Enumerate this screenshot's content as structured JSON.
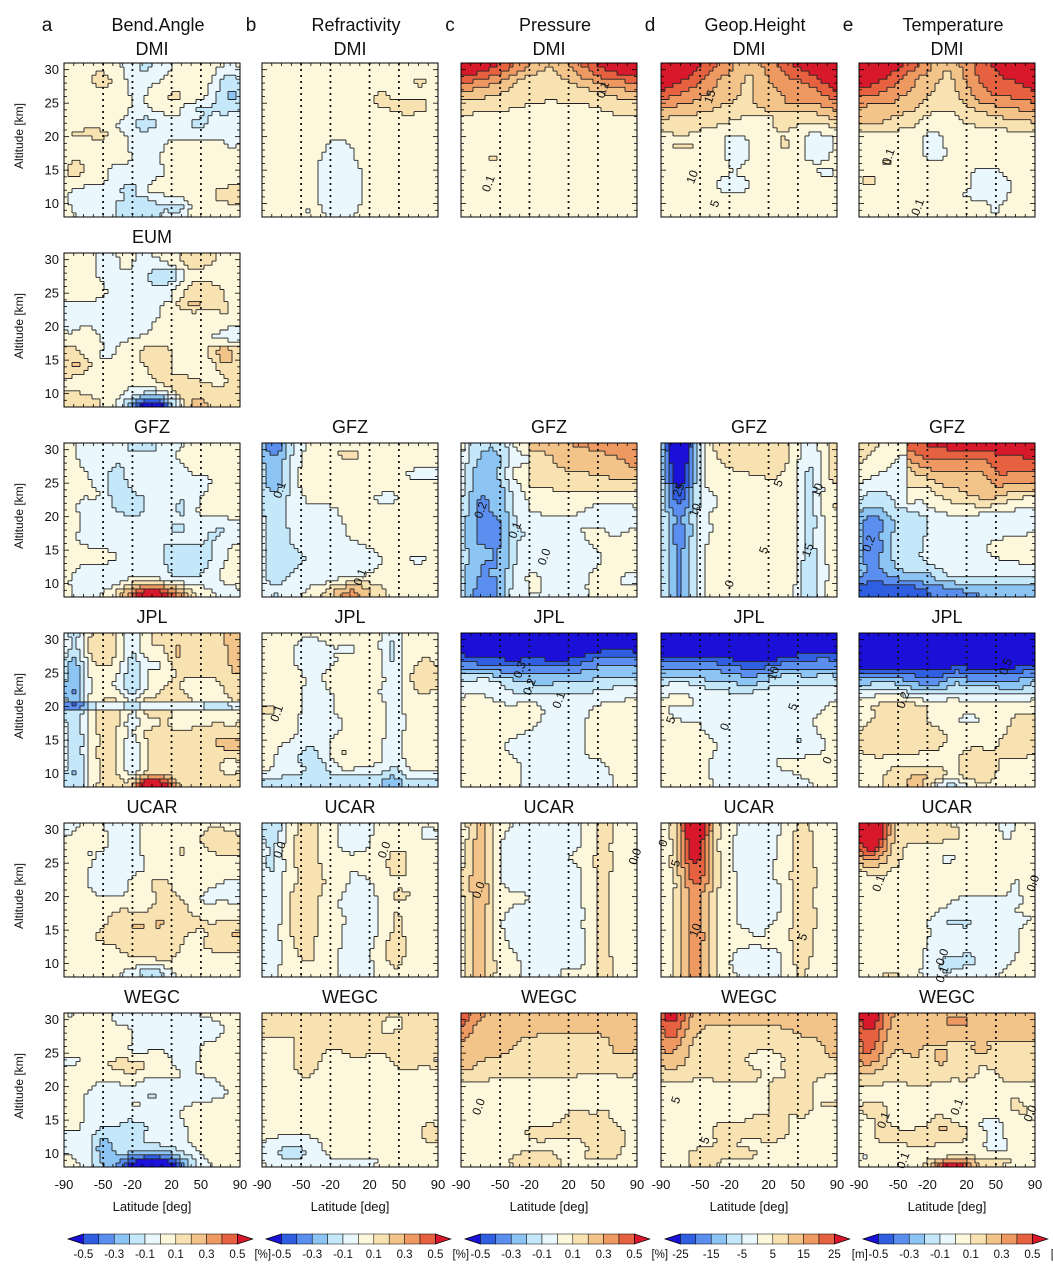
{
  "chart_data": {
    "type": "heatmap",
    "description_labels": {
      "column_letters": [
        "a",
        "b",
        "c",
        "d",
        "e"
      ],
      "variables": [
        "Bend.Angle",
        "Refractivity",
        "Pressure",
        "Geop.Height",
        "Temperature"
      ],
      "centers": [
        "DMI",
        "EUM",
        "GFZ",
        "JPL",
        "UCAR",
        "WEGC"
      ]
    },
    "ylabel": "Altitude [km]",
    "xlabel": "Latitude [deg]",
    "xlim": [
      -90,
      90
    ],
    "ylim": [
      8,
      31
    ],
    "x_ticks": [
      "-90",
      "-50",
      "-20",
      "20",
      "50",
      "90"
    ],
    "y_ticks": [
      "10",
      "15",
      "20",
      "25",
      "30"
    ],
    "colorbars": [
      {
        "ticks": [
          "-0.5",
          "-0.3",
          "-0.1",
          "0.1",
          "0.3",
          "0.5"
        ],
        "unit": "[%]"
      },
      {
        "ticks": [
          "-0.5",
          "-0.3",
          "-0.1",
          "0.1",
          "0.3",
          "0.5"
        ],
        "unit": "[%]"
      },
      {
        "ticks": [
          "-0.5",
          "-0.3",
          "-0.1",
          "0.1",
          "0.3",
          "0.5"
        ],
        "unit": "[%]"
      },
      {
        "ticks": [
          "-25",
          "-15",
          "-5",
          "5",
          "15",
          "25"
        ],
        "unit": "[m]"
      },
      {
        "ticks": [
          "-0.5",
          "-0.3",
          "-0.1",
          "0.1",
          "0.3",
          "0.5"
        ],
        "unit": "[K]"
      }
    ],
    "colors": {
      "scale": [
        "#1a10d8",
        "#2f5fe0",
        "#5a8ff0",
        "#8cc4f4",
        "#c4e8fa",
        "#eaf7fc",
        "#fdf8dc",
        "#f8e2b2",
        "#f3c489",
        "#ee9962",
        "#e6613f",
        "#d7192b"
      ],
      "dark_blue": "#1a10d8",
      "dark_red": "#c0101e"
    },
    "panels": [
      {
        "row": 0,
        "col": 0,
        "center": "DMI",
        "pattern": "noisy_neutral",
        "labels": []
      },
      {
        "row": 0,
        "col": 1,
        "center": "DMI",
        "pattern": "slight_positive",
        "labels": []
      },
      {
        "row": 0,
        "col": 2,
        "center": "DMI",
        "pattern": "upper_polar_warm",
        "labels": [
          {
            "text": "0.1",
            "x": 55,
            "y": 27
          },
          {
            "text": "0.1",
            "x": -62,
            "y": 13
          }
        ]
      },
      {
        "row": 0,
        "col": 3,
        "center": "DMI",
        "pattern": "upper_polar_warm_strong",
        "labels": [
          {
            "text": "15",
            "x": -40,
            "y": 26
          },
          {
            "text": "10",
            "x": -58,
            "y": 14
          },
          {
            "text": "5",
            "x": -35,
            "y": 10
          }
        ]
      },
      {
        "row": 0,
        "col": 4,
        "center": "DMI",
        "pattern": "upper_polar_warm_strong",
        "labels": [
          {
            "text": "0.1",
            "x": -60,
            "y": 17
          },
          {
            "text": "0.1",
            "x": -30,
            "y": 9.5
          }
        ]
      },
      {
        "row": 1,
        "col": 0,
        "center": "EUM",
        "pattern": "noisy_cool_bottom_blob",
        "labels": []
      },
      {
        "row": 2,
        "col": 0,
        "center": "GFZ",
        "pattern": "noisy_warm_bottom_blob",
        "labels": []
      },
      {
        "row": 2,
        "col": 1,
        "center": "GFZ",
        "pattern": "left_cool_bottom_warm",
        "labels": [
          {
            "text": "0.1",
            "x": -72,
            "y": 24
          },
          {
            "text": "0.1",
            "x": 10,
            "y": 11
          }
        ]
      },
      {
        "row": 2,
        "col": 2,
        "center": "GFZ",
        "pattern": "left_cool_upper_warm",
        "labels": [
          {
            "text": "0.2",
            "x": -70,
            "y": 21
          },
          {
            "text": "0.1",
            "x": -35,
            "y": 18
          },
          {
            "text": "0.0",
            "x": -5,
            "y": 14
          }
        ]
      },
      {
        "row": 2,
        "col": 3,
        "center": "GFZ",
        "pattern": "left_strong_cool",
        "labels": [
          {
            "text": "25",
            "x": -72,
            "y": 24
          },
          {
            "text": "10",
            "x": -55,
            "y": 21
          },
          {
            "text": "5",
            "x": 30,
            "y": 25
          },
          {
            "text": "10",
            "x": 70,
            "y": 24
          },
          {
            "text": "15",
            "x": 60,
            "y": 15
          },
          {
            "text": "5",
            "x": 15,
            "y": 15
          },
          {
            "text": "0",
            "x": -20,
            "y": 10
          }
        ]
      },
      {
        "row": 2,
        "col": 4,
        "center": "GFZ",
        "pattern": "upper_warm_bottom_cool",
        "labels": [
          {
            "text": "0.2",
            "x": -80,
            "y": 16
          }
        ]
      },
      {
        "row": 3,
        "col": 0,
        "center": "JPL",
        "pattern": "banded_warm_red_bottom",
        "labels": []
      },
      {
        "row": 3,
        "col": 1,
        "center": "JPL",
        "pattern": "slight_positive_stripes",
        "labels": [
          {
            "text": "0.1",
            "x": -75,
            "y": 19
          }
        ]
      },
      {
        "row": 3,
        "col": 2,
        "center": "JPL",
        "pattern": "top_strong_cool",
        "labels": [
          {
            "text": "0.3",
            "x": -30,
            "y": 25.5
          },
          {
            "text": "0.2",
            "x": -20,
            "y": 23
          },
          {
            "text": "0.1",
            "x": 10,
            "y": 21
          }
        ]
      },
      {
        "row": 3,
        "col": 3,
        "center": "JPL",
        "pattern": "top_strong_cool",
        "labels": [
          {
            "text": "10",
            "x": 25,
            "y": 25
          },
          {
            "text": "5",
            "x": 45,
            "y": 20
          },
          {
            "text": "0",
            "x": -25,
            "y": 17
          },
          {
            "text": "5",
            "x": -80,
            "y": 18
          },
          {
            "text": "0",
            "x": 80,
            "y": 12
          }
        ]
      },
      {
        "row": 3,
        "col": 4,
        "center": "JPL",
        "pattern": "top_very_strong_cool",
        "labels": [
          {
            "text": "0.5",
            "x": 60,
            "y": 26
          },
          {
            "text": "0.2",
            "x": -45,
            "y": 21
          }
        ]
      },
      {
        "row": 4,
        "col": 0,
        "center": "UCAR",
        "pattern": "neutral_warm_mix_bottom",
        "labels": []
      },
      {
        "row": 4,
        "col": 1,
        "center": "UCAR",
        "pattern": "slight_mix",
        "labels": [
          {
            "text": "0.0",
            "x": -72,
            "y": 27
          },
          {
            "text": "0.0",
            "x": 35,
            "y": 27
          }
        ]
      },
      {
        "row": 4,
        "col": 2,
        "center": "UCAR",
        "pattern": "slight_mix_pressure",
        "labels": [
          {
            "text": "0.0",
            "x": -72,
            "y": 21
          },
          {
            "text": "0.0",
            "x": 88,
            "y": 26
          }
        ]
      },
      {
        "row": 4,
        "col": 3,
        "center": "UCAR",
        "pattern": "left_warm_column",
        "labels": [
          {
            "text": "0",
            "x": -88,
            "y": 28
          },
          {
            "text": "5",
            "x": -75,
            "y": 25
          },
          {
            "text": "10",
            "x": -55,
            "y": 15
          },
          {
            "text": "5",
            "x": 55,
            "y": 14
          }
        ]
      },
      {
        "row": 4,
        "col": 4,
        "center": "UCAR",
        "pattern": "top_left_warm",
        "labels": [
          {
            "text": "0.1",
            "x": -70,
            "y": 22
          },
          {
            "text": "0.0",
            "x": -5,
            "y": 11
          },
          {
            "text": "0.1",
            "x": -5,
            "y": 8.4
          },
          {
            "text": "0.0",
            "x": 88,
            "y": 22
          }
        ]
      },
      {
        "row": 5,
        "col": 0,
        "center": "WEGC",
        "pattern": "cool_bottom_blob",
        "labels": []
      },
      {
        "row": 5,
        "col": 1,
        "center": "WEGC",
        "pattern": "slight_positive_cool_low",
        "labels": []
      },
      {
        "row": 5,
        "col": 2,
        "center": "WEGC",
        "pattern": "slight_warm_top",
        "labels": [
          {
            "text": "0.0",
            "x": -72,
            "y": 17
          }
        ]
      },
      {
        "row": 5,
        "col": 3,
        "center": "WEGC",
        "pattern": "slight_warm_top_left",
        "labels": [
          {
            "text": "5",
            "x": -75,
            "y": 18
          },
          {
            "text": "5",
            "x": -45,
            "y": 12
          }
        ]
      },
      {
        "row": 5,
        "col": 4,
        "center": "WEGC",
        "pattern": "warm_mix_red_bottom",
        "labels": [
          {
            "text": "0.1",
            "x": -65,
            "y": 15
          },
          {
            "text": "0.1",
            "x": 10,
            "y": 17
          },
          {
            "text": "0.0",
            "x": 85,
            "y": 16
          },
          {
            "text": "0.1",
            "x": -45,
            "y": 9
          }
        ]
      }
    ]
  }
}
